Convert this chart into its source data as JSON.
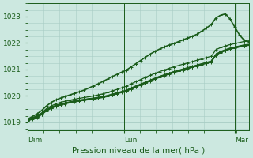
{
  "title": "Pression niveau de la mer( hPa )",
  "bg_color": "#cce8e0",
  "grid_color": "#a8ccc4",
  "line_color": "#1a5c1a",
  "ylim": [
    1018.7,
    1023.5
  ],
  "yticks": [
    1019,
    1020,
    1021,
    1022,
    1023
  ],
  "xtick_labels": [
    "Dim",
    "Lun",
    "Mar"
  ],
  "xtick_positions": [
    0.0,
    0.435,
    0.935
  ],
  "n_points": 48,
  "series": [
    [
      1019.1,
      1019.15,
      1019.2,
      1019.3,
      1019.45,
      1019.55,
      1019.62,
      1019.68,
      1019.72,
      1019.76,
      1019.8,
      1019.82,
      1019.85,
      1019.88,
      1019.9,
      1019.93,
      1019.96,
      1020.0,
      1020.05,
      1020.1,
      1020.15,
      1020.2,
      1020.28,
      1020.35,
      1020.42,
      1020.5,
      1020.58,
      1020.65,
      1020.72,
      1020.78,
      1020.84,
      1020.9,
      1020.95,
      1021.0,
      1021.05,
      1021.1,
      1021.15,
      1021.2,
      1021.25,
      1021.3,
      1021.55,
      1021.65,
      1021.72,
      1021.78,
      1021.82,
      1021.86,
      1021.9,
      1021.92
    ],
    [
      1019.1,
      1019.18,
      1019.25,
      1019.35,
      1019.48,
      1019.58,
      1019.65,
      1019.7,
      1019.74,
      1019.78,
      1019.82,
      1019.85,
      1019.87,
      1019.9,
      1019.92,
      1019.95,
      1019.98,
      1020.02,
      1020.07,
      1020.12,
      1020.17,
      1020.22,
      1020.3,
      1020.38,
      1020.45,
      1020.52,
      1020.6,
      1020.67,
      1020.74,
      1020.8,
      1020.86,
      1020.92,
      1020.97,
      1021.02,
      1021.07,
      1021.12,
      1021.17,
      1021.22,
      1021.27,
      1021.32,
      1021.58,
      1021.68,
      1021.75,
      1021.81,
      1021.85,
      1021.89,
      1021.93,
      1021.95
    ],
    [
      1019.08,
      1019.15,
      1019.22,
      1019.32,
      1019.46,
      1019.56,
      1019.63,
      1019.69,
      1019.73,
      1019.77,
      1019.81,
      1019.84,
      1019.86,
      1019.89,
      1019.91,
      1019.94,
      1019.97,
      1020.01,
      1020.06,
      1020.11,
      1020.16,
      1020.21,
      1020.29,
      1020.37,
      1020.44,
      1020.51,
      1020.59,
      1020.66,
      1020.73,
      1020.79,
      1020.85,
      1020.91,
      1020.96,
      1021.01,
      1021.06,
      1021.11,
      1021.16,
      1021.21,
      1021.26,
      1021.31,
      1021.57,
      1021.67,
      1021.74,
      1021.8,
      1021.84,
      1021.88,
      1021.92,
      1021.94
    ],
    [
      1019.05,
      1019.12,
      1019.19,
      1019.29,
      1019.43,
      1019.53,
      1019.6,
      1019.66,
      1019.7,
      1019.74,
      1019.78,
      1019.81,
      1019.83,
      1019.86,
      1019.88,
      1019.91,
      1019.94,
      1019.98,
      1020.03,
      1020.08,
      1020.13,
      1020.18,
      1020.26,
      1020.34,
      1020.41,
      1020.48,
      1020.56,
      1020.63,
      1020.7,
      1020.76,
      1020.82,
      1020.88,
      1020.93,
      1020.98,
      1021.03,
      1021.08,
      1021.13,
      1021.18,
      1021.23,
      1021.28,
      1021.54,
      1021.64,
      1021.71,
      1021.77,
      1021.81,
      1021.85,
      1021.89,
      1021.91
    ],
    [
      1019.08,
      1019.16,
      1019.24,
      1019.36,
      1019.52,
      1019.62,
      1019.7,
      1019.76,
      1019.8,
      1019.84,
      1019.88,
      1019.91,
      1019.94,
      1019.97,
      1020.0,
      1020.04,
      1020.08,
      1020.13,
      1020.19,
      1020.25,
      1020.31,
      1020.37,
      1020.46,
      1020.54,
      1020.62,
      1020.7,
      1020.78,
      1020.85,
      1020.92,
      1020.98,
      1021.04,
      1021.1,
      1021.15,
      1021.2,
      1021.25,
      1021.3,
      1021.35,
      1021.4,
      1021.45,
      1021.5,
      1021.75,
      1021.83,
      1021.89,
      1021.94,
      1021.98,
      1022.02,
      1022.06,
      1022.08
    ],
    [
      1019.07,
      1019.14,
      1019.21,
      1019.31,
      1019.45,
      1019.55,
      1019.62,
      1019.68,
      1019.72,
      1019.76,
      1019.8,
      1019.83,
      1019.85,
      1019.88,
      1019.9,
      1019.93,
      1019.96,
      1020.0,
      1020.05,
      1020.1,
      1020.15,
      1020.2,
      1020.28,
      1020.36,
      1020.43,
      1020.5,
      1020.58,
      1020.65,
      1020.72,
      1020.78,
      1020.84,
      1020.9,
      1020.95,
      1021.0,
      1021.05,
      1021.1,
      1021.15,
      1021.2,
      1021.25,
      1021.3,
      1021.55,
      1021.65,
      1021.72,
      1021.78,
      1021.82,
      1021.86,
      1021.9,
      1021.92
    ],
    [
      1019.12,
      1019.22,
      1019.32,
      1019.45,
      1019.62,
      1019.75,
      1019.85,
      1019.92,
      1019.98,
      1020.04,
      1020.1,
      1020.16,
      1020.22,
      1020.3,
      1020.38,
      1020.46,
      1020.55,
      1020.64,
      1020.73,
      1020.82,
      1020.9,
      1020.98,
      1021.1,
      1021.22,
      1021.34,
      1021.46,
      1021.58,
      1021.68,
      1021.77,
      1021.85,
      1021.92,
      1021.98,
      1022.05,
      1022.12,
      1022.19,
      1022.26,
      1022.33,
      1022.45,
      1022.57,
      1022.7,
      1022.95,
      1023.05,
      1023.1,
      1022.9,
      1022.6,
      1022.3,
      1022.1,
      1022.05
    ]
  ],
  "vline_x": [
    0.0,
    0.435,
    0.935,
    1.0
  ]
}
